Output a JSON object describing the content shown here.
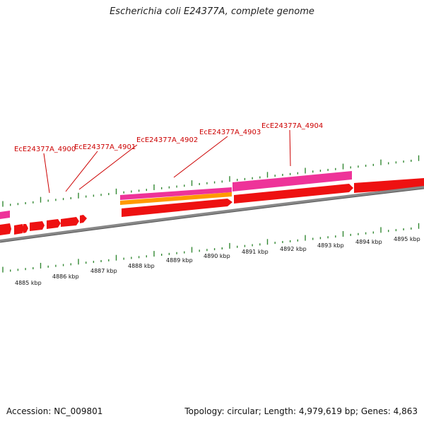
{
  "title": "Escherichia coli E24377A, complete genome",
  "footer": {
    "accession": "Accession: NC_009801",
    "summary": "Topology: circular; Length: 4,979,619 bp; Genes: 4,863"
  },
  "gene_labels": [
    "EcE24377A_4900",
    "EcE24377A_4901",
    "EcE24377A_4902",
    "EcE24377A_4903",
    "EcE24377A_4904"
  ],
  "kbp_labels": [
    "4885 kbp",
    "4886 kbp",
    "4887 kbp",
    "4888 kbp",
    "4889 kbp",
    "4890 kbp",
    "4891 kbp",
    "4892 kbp",
    "4893 kbp",
    "4894 kbp",
    "4895 kbp"
  ],
  "colors": {
    "cds_forward": "#ee1111",
    "rna_pink": "#ee3399",
    "orange": "#ff9900",
    "backbone": "#888888",
    "tick": "#338833",
    "label": "#cc0000"
  }
}
